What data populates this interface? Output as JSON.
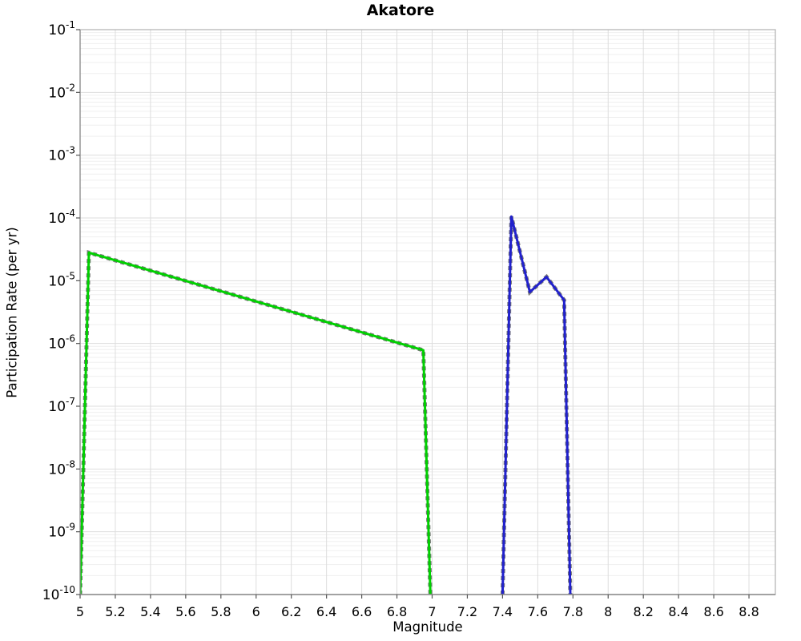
{
  "chart_data": {
    "type": "line",
    "title": "Akatore",
    "xlabel": "Magnitude",
    "ylabel": "Participation Rate (per yr)",
    "xscale": "linear",
    "yscale": "log",
    "xlim": [
      5.0,
      8.95
    ],
    "ylim": [
      1e-10,
      0.1
    ],
    "xticks": [
      5,
      5.2,
      5.4,
      5.6,
      5.8,
      6,
      6.2,
      6.4,
      6.6,
      6.8,
      7,
      7.2,
      7.4,
      7.6,
      7.8,
      8,
      8.2,
      8.4,
      8.6,
      8.8
    ],
    "ytick_exponents": [
      -1,
      -2,
      -3,
      -4,
      -5,
      -6,
      -7,
      -8,
      -9,
      -10
    ],
    "grid": true,
    "legend": "none",
    "series": [
      {
        "name": "green-line",
        "color": "#00D000",
        "overlay": "gray-dashed",
        "points": [
          [
            5.0,
            1e-10
          ],
          [
            5.05,
            2.8e-05
          ],
          [
            6.95,
            7.8e-07
          ],
          [
            6.99,
            1e-10
          ]
        ]
      },
      {
        "name": "blue-line",
        "color": "#2121CC",
        "overlay": "gray-dashed",
        "points": [
          [
            7.4,
            1e-10
          ],
          [
            7.45,
            0.000105
          ],
          [
            7.555,
            6.6e-06
          ],
          [
            7.65,
            1.15e-05
          ],
          [
            7.75,
            4.9e-06
          ],
          [
            7.785,
            1e-10
          ]
        ]
      }
    ],
    "colors": {
      "dash_overlay": "#777777",
      "gridline_major": "#dddddd",
      "gridline_minor": "#efefef",
      "frame": "#b0b0b0",
      "axis_line": "#888888",
      "tick": "#555555",
      "text": "#000000"
    }
  }
}
